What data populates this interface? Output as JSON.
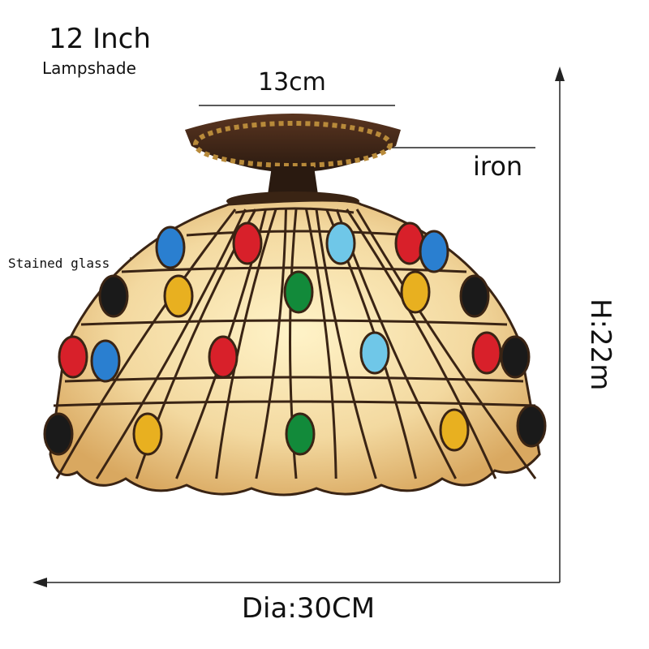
{
  "labels": {
    "size": "12 Inch",
    "lampshade": "Lampshade",
    "top_width": "13cm",
    "iron": "iron",
    "stained_glass": "Stained glass",
    "height": "H:22m",
    "diameter": "Dia:30CM"
  }
}
